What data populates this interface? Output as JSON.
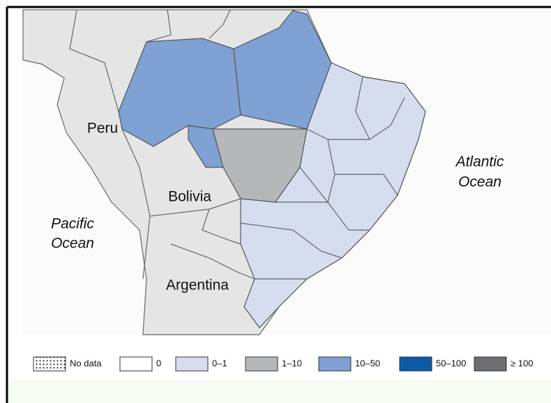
{
  "map": {
    "labels": [
      {
        "text": "Peru"
      },
      {
        "text": "Bolivia"
      },
      {
        "text": "Argentina"
      }
    ],
    "oceans": [
      {
        "lines": [
          "Pacific",
          "Ocean"
        ]
      },
      {
        "lines": [
          "Atlantic",
          "Ocean"
        ]
      }
    ],
    "legend": [
      {
        "label": "No data",
        "color": "#ffffff",
        "pattern": "dots"
      },
      {
        "label": "0",
        "color": "#ffffff"
      },
      {
        "label": "0–1",
        "color": "#d5ddef"
      },
      {
        "label": "1–10",
        "color": "#b5b7b9"
      },
      {
        "label": "10–50",
        "color": "#7fa1d3"
      },
      {
        "label": "50–100",
        "color": "#0c5aa6"
      },
      {
        "label": "≥ 100",
        "color": "#6d6e70"
      }
    ]
  }
}
